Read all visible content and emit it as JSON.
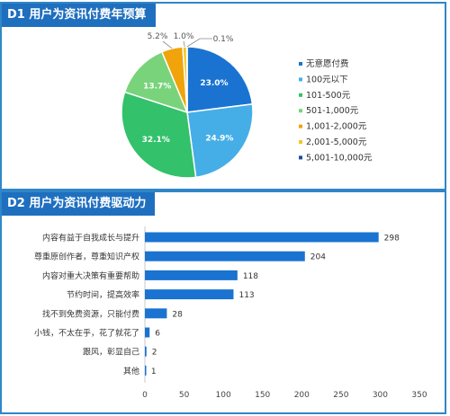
{
  "charts": {
    "pie": {
      "title": "D1 用户为资讯付费年预算",
      "chart_data": {
        "type": "pie",
        "title": "D1 用户为资讯付费年预算",
        "slices": [
          {
            "label": "无意愿付费",
            "value": 23.0,
            "display": "23.0%",
            "color": "#1a73d1"
          },
          {
            "label": "100元以下",
            "value": 24.9,
            "display": "24.9%",
            "color": "#46aee6"
          },
          {
            "label": "101-500元",
            "value": 32.1,
            "display": "32.1%",
            "color": "#33c16b"
          },
          {
            "label": "501-1,000元",
            "value": 13.7,
            "display": "13.7%",
            "color": "#79d37a"
          },
          {
            "label": "1,001-2,000元",
            "value": 5.2,
            "display": "5.2%",
            "color": "#f0a30a"
          },
          {
            "label": "2,001-5,000元",
            "value": 1.0,
            "display": "1.0%",
            "color": "#f5c623"
          },
          {
            "label": "5,001-10,000元",
            "value": 0.1,
            "display": "0.1%",
            "color": "#1a4f99"
          }
        ],
        "legend_position": "right"
      }
    },
    "bar": {
      "title": "D2 用户为资讯付费驱动力",
      "chart_data": {
        "type": "bar",
        "orientation": "horizontal",
        "title": "D2 用户为资讯付费驱动力",
        "categories": [
          "内容有益于自我成长与提升",
          "尊重原创作者，尊重知识产权",
          "内容对重大决策有重要帮助",
          "节约时间，提高效率",
          "找不到免费资源，只能付费",
          "小钱，不太在乎，花了就花了",
          "跟风，彰显自己",
          "其他"
        ],
        "values": [
          298,
          204,
          118,
          113,
          28,
          6,
          2,
          1
        ],
        "xlim": [
          0,
          350
        ],
        "xticks": [
          0,
          50,
          100,
          150,
          200,
          250,
          300,
          350
        ],
        "grid": false,
        "bar_color": "#1a73d1"
      }
    }
  }
}
